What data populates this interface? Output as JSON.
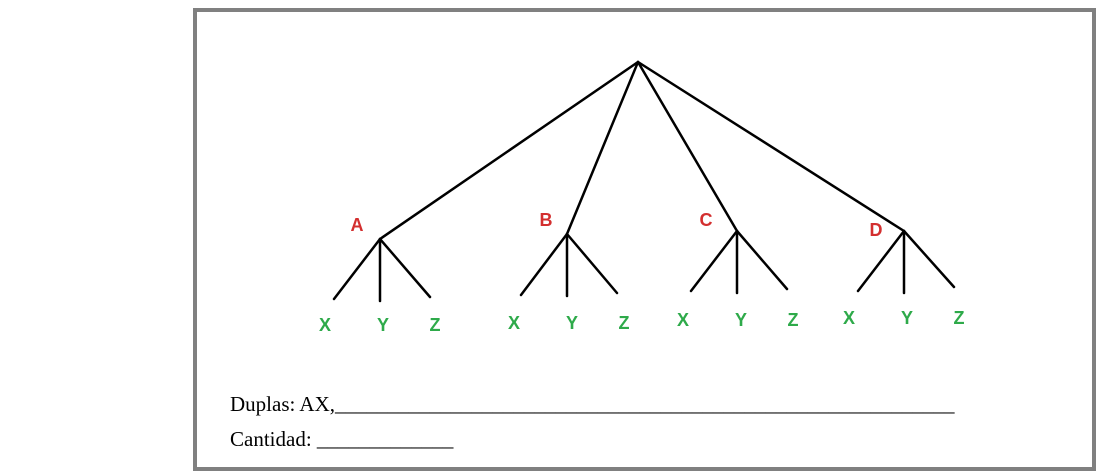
{
  "diagram": {
    "type": "tree",
    "branches": [
      {
        "label": "A",
        "children": [
          "X",
          "Y",
          "Z"
        ]
      },
      {
        "label": "B",
        "children": [
          "X",
          "Y",
          "Z"
        ]
      },
      {
        "label": "C",
        "children": [
          "X",
          "Y",
          "Z"
        ]
      },
      {
        "label": "D",
        "children": [
          "X",
          "Y",
          "Z"
        ]
      }
    ]
  },
  "colors": {
    "branch_label": "#d32f2f",
    "leaf_label": "#2eaa4a",
    "edges": "#000000",
    "frame_border": "#808080"
  },
  "footer": {
    "duplas_text": "Duplas: AX,___________________________________________________________",
    "cantidad_text": "Cantidad: _____________"
  }
}
